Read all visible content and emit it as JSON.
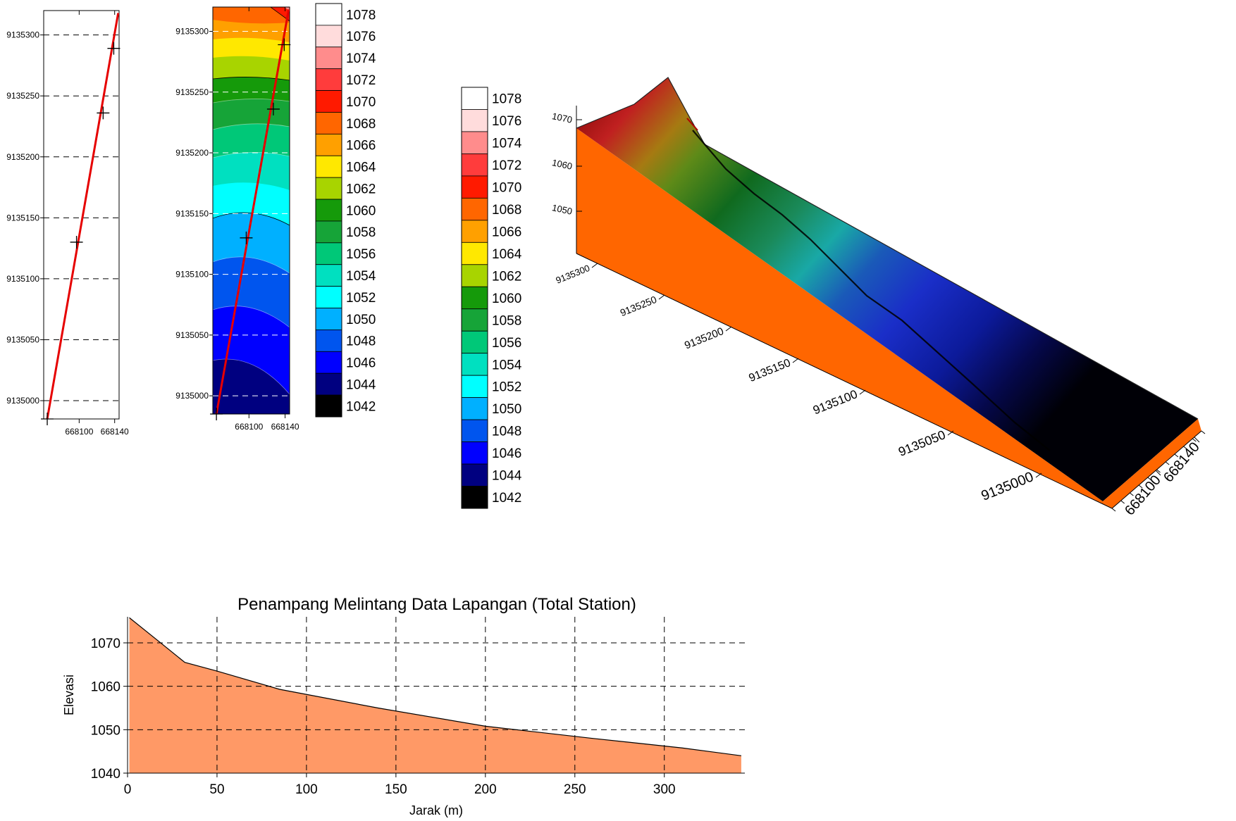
{
  "colors": {
    "track_line": "#e60000",
    "profile_fill": "#ff9966",
    "profile_line": "#000000",
    "wall_fill": "#ff6600",
    "grid": "#000000"
  },
  "chart_data": [
    {
      "id": "track-map",
      "type": "line",
      "xticks": [
        "668100",
        "668140"
      ],
      "yticks": [
        "9135000",
        "9135050",
        "9135100",
        "9135150",
        "9135200",
        "9135250",
        "9135300"
      ],
      "xlim": [
        668060,
        668145
      ],
      "ylim": [
        9134985,
        9135320
      ],
      "line": {
        "x": [
          668064,
          668144
        ],
        "y": [
          9134985,
          9135318
        ]
      },
      "markers": [
        {
          "x": 668064,
          "y": 9134985
        },
        {
          "x": 668097,
          "y": 9135130
        },
        {
          "x": 668127,
          "y": 9135236
        },
        {
          "x": 668139,
          "y": 9135289
        }
      ]
    },
    {
      "id": "contour-map",
      "type": "heatmap",
      "xticks": [
        "668100",
        "668140"
      ],
      "yticks": [
        "9135000",
        "9135050",
        "9135100",
        "9135150",
        "9135200",
        "9135250",
        "9135300"
      ],
      "levels": [
        1042,
        1044,
        1046,
        1048,
        1050,
        1052,
        1054,
        1056,
        1058,
        1060,
        1062,
        1064,
        1066,
        1068,
        1070,
        1072,
        1074,
        1076,
        1078
      ],
      "level_colors": [
        "#000000",
        "#000080",
        "#0000ff",
        "#0055ee",
        "#00b0ff",
        "#00ffff",
        "#00e0c0",
        "#00c878",
        "#16a438",
        "#159a0a",
        "#a8d400",
        "#ffe800",
        "#ffa000",
        "#ff6600",
        "#ff1a00",
        "#ff3c3c",
        "#ff8c8c",
        "#ffdcdc",
        "#ffffff"
      ],
      "band_order_top_to_bottom": [
        1068,
        1066,
        1064,
        1062,
        1060,
        1058,
        1056,
        1054,
        1052,
        1050,
        1048,
        1046,
        1044
      ]
    },
    {
      "id": "legend-small",
      "type": "table",
      "labels": [
        "1078",
        "1076",
        "1074",
        "1072",
        "1070",
        "1068",
        "1066",
        "1064",
        "1062",
        "1060",
        "1058",
        "1056",
        "1054",
        "1052",
        "1050",
        "1048",
        "1046",
        "1044",
        "1042"
      ]
    },
    {
      "id": "legend-large",
      "type": "table",
      "labels": [
        "1078",
        "1076",
        "1074",
        "1072",
        "1070",
        "1068",
        "1066",
        "1064",
        "1062",
        "1060",
        "1058",
        "1056",
        "1054",
        "1052",
        "1050",
        "1048",
        "1046",
        "1044",
        "1042"
      ]
    },
    {
      "id": "surface-3d",
      "type": "area",
      "z_ticks": [
        "1070",
        "1060",
        "1050"
      ],
      "y_ticks": [
        "9135300",
        "9135250",
        "9135200",
        "9135150",
        "9135100",
        "9135050",
        "9135000"
      ],
      "x_ticks": [
        "668140",
        "668100"
      ]
    },
    {
      "id": "profile",
      "type": "area",
      "title": "Penampang Melintang Data Lapangan (Total Station)",
      "xlabel": "Jarak (m)",
      "ylabel": "Elevasi",
      "xticks": [
        "0",
        "50",
        "100",
        "150",
        "200",
        "250",
        "300"
      ],
      "yticks": [
        "1040",
        "1050",
        "1060",
        "1070"
      ],
      "xlim": [
        0,
        345
      ],
      "ylim": [
        1040,
        1076
      ],
      "x": [
        1,
        20,
        32,
        50,
        85,
        140,
        200,
        260,
        310,
        343
      ],
      "y": [
        1075.8,
        1069.5,
        1065.5,
        1063.5,
        1059.3,
        1055.0,
        1050.8,
        1048.0,
        1045.8,
        1044.0
      ]
    }
  ]
}
